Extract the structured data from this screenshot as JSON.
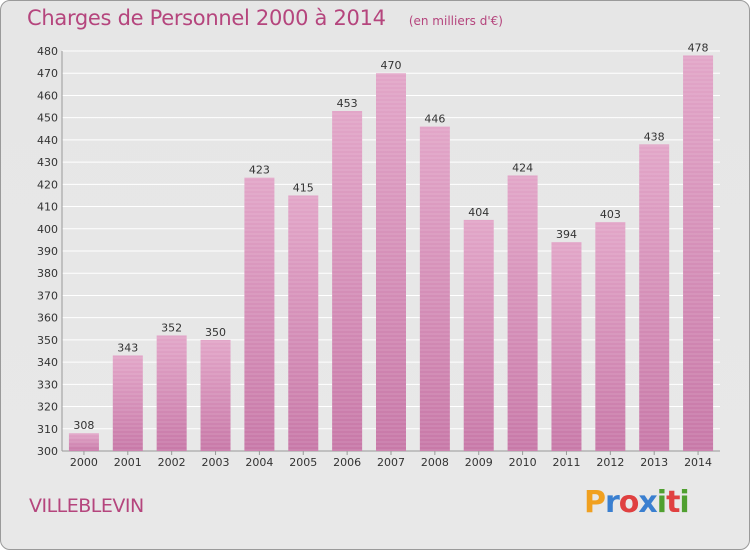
{
  "title": "Charges de Personnel 2000 à 2014",
  "subtitle": "(en milliers d'€)",
  "commune": "VILLEBLEVIN",
  "logo": {
    "letters": [
      "P",
      "r",
      "o",
      "x",
      "i",
      "t",
      "i"
    ],
    "colors": [
      "#f0a020",
      "#3a7fd0",
      "#e04040",
      "#3a7fd0",
      "#50a030",
      "#e04040",
      "#50a030"
    ]
  },
  "colors": {
    "bar": "#c879a8",
    "bar_light": "#e2a6c8",
    "text": "#333333",
    "accent": "#b5457d"
  },
  "chart_data": {
    "type": "bar",
    "title": "Charges de Personnel 2000 à 2014",
    "subtitle": "(en milliers d'€)",
    "xlabel": "",
    "ylabel": "",
    "categories": [
      "2000",
      "2001",
      "2002",
      "2003",
      "2004",
      "2005",
      "2006",
      "2007",
      "2008",
      "2009",
      "2010",
      "2011",
      "2012",
      "2013",
      "2014"
    ],
    "values": [
      308,
      343,
      352,
      350,
      423,
      415,
      453,
      470,
      446,
      404,
      424,
      394,
      403,
      438,
      478
    ],
    "ylim": [
      300,
      480
    ],
    "yticks": [
      300,
      310,
      320,
      330,
      340,
      350,
      360,
      370,
      380,
      390,
      400,
      410,
      420,
      430,
      440,
      450,
      460,
      470,
      480
    ],
    "grid": true,
    "data_labels": true
  }
}
